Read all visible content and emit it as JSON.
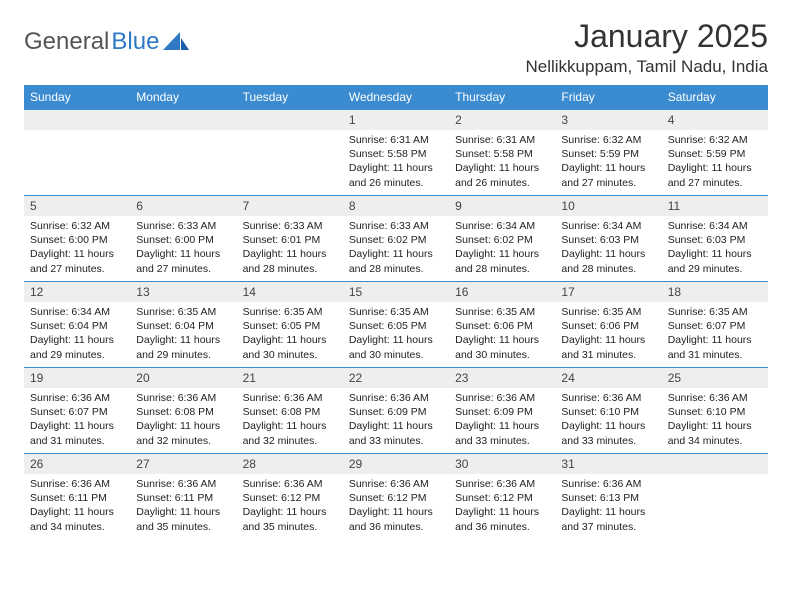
{
  "logo": {
    "text1": "General",
    "text2": "Blue"
  },
  "title": "January 2025",
  "location": "Nellikkuppam, Tamil Nadu, India",
  "colors": {
    "header_bg": "#3b8bd0",
    "header_text": "#ffffff",
    "daynum_bg": "#eceeef",
    "row_border": "#3b8bd0",
    "logo_blue": "#2f78c4"
  },
  "typography": {
    "title_fontsize": 32,
    "location_fontsize": 17,
    "th_fontsize": 12,
    "daynum_fontsize": 12,
    "body_fontsize": 10.5
  },
  "weekdays": [
    "Sunday",
    "Monday",
    "Tuesday",
    "Wednesday",
    "Thursday",
    "Friday",
    "Saturday"
  ],
  "weeks": [
    [
      null,
      null,
      null,
      {
        "n": "1",
        "sr": "Sunrise: 6:31 AM",
        "ss": "Sunset: 5:58 PM",
        "d1": "Daylight: 11 hours",
        "d2": "and 26 minutes."
      },
      {
        "n": "2",
        "sr": "Sunrise: 6:31 AM",
        "ss": "Sunset: 5:58 PM",
        "d1": "Daylight: 11 hours",
        "d2": "and 26 minutes."
      },
      {
        "n": "3",
        "sr": "Sunrise: 6:32 AM",
        "ss": "Sunset: 5:59 PM",
        "d1": "Daylight: 11 hours",
        "d2": "and 27 minutes."
      },
      {
        "n": "4",
        "sr": "Sunrise: 6:32 AM",
        "ss": "Sunset: 5:59 PM",
        "d1": "Daylight: 11 hours",
        "d2": "and 27 minutes."
      }
    ],
    [
      {
        "n": "5",
        "sr": "Sunrise: 6:32 AM",
        "ss": "Sunset: 6:00 PM",
        "d1": "Daylight: 11 hours",
        "d2": "and 27 minutes."
      },
      {
        "n": "6",
        "sr": "Sunrise: 6:33 AM",
        "ss": "Sunset: 6:00 PM",
        "d1": "Daylight: 11 hours",
        "d2": "and 27 minutes."
      },
      {
        "n": "7",
        "sr": "Sunrise: 6:33 AM",
        "ss": "Sunset: 6:01 PM",
        "d1": "Daylight: 11 hours",
        "d2": "and 28 minutes."
      },
      {
        "n": "8",
        "sr": "Sunrise: 6:33 AM",
        "ss": "Sunset: 6:02 PM",
        "d1": "Daylight: 11 hours",
        "d2": "and 28 minutes."
      },
      {
        "n": "9",
        "sr": "Sunrise: 6:34 AM",
        "ss": "Sunset: 6:02 PM",
        "d1": "Daylight: 11 hours",
        "d2": "and 28 minutes."
      },
      {
        "n": "10",
        "sr": "Sunrise: 6:34 AM",
        "ss": "Sunset: 6:03 PM",
        "d1": "Daylight: 11 hours",
        "d2": "and 28 minutes."
      },
      {
        "n": "11",
        "sr": "Sunrise: 6:34 AM",
        "ss": "Sunset: 6:03 PM",
        "d1": "Daylight: 11 hours",
        "d2": "and 29 minutes."
      }
    ],
    [
      {
        "n": "12",
        "sr": "Sunrise: 6:34 AM",
        "ss": "Sunset: 6:04 PM",
        "d1": "Daylight: 11 hours",
        "d2": "and 29 minutes."
      },
      {
        "n": "13",
        "sr": "Sunrise: 6:35 AM",
        "ss": "Sunset: 6:04 PM",
        "d1": "Daylight: 11 hours",
        "d2": "and 29 minutes."
      },
      {
        "n": "14",
        "sr": "Sunrise: 6:35 AM",
        "ss": "Sunset: 6:05 PM",
        "d1": "Daylight: 11 hours",
        "d2": "and 30 minutes."
      },
      {
        "n": "15",
        "sr": "Sunrise: 6:35 AM",
        "ss": "Sunset: 6:05 PM",
        "d1": "Daylight: 11 hours",
        "d2": "and 30 minutes."
      },
      {
        "n": "16",
        "sr": "Sunrise: 6:35 AM",
        "ss": "Sunset: 6:06 PM",
        "d1": "Daylight: 11 hours",
        "d2": "and 30 minutes."
      },
      {
        "n": "17",
        "sr": "Sunrise: 6:35 AM",
        "ss": "Sunset: 6:06 PM",
        "d1": "Daylight: 11 hours",
        "d2": "and 31 minutes."
      },
      {
        "n": "18",
        "sr": "Sunrise: 6:35 AM",
        "ss": "Sunset: 6:07 PM",
        "d1": "Daylight: 11 hours",
        "d2": "and 31 minutes."
      }
    ],
    [
      {
        "n": "19",
        "sr": "Sunrise: 6:36 AM",
        "ss": "Sunset: 6:07 PM",
        "d1": "Daylight: 11 hours",
        "d2": "and 31 minutes."
      },
      {
        "n": "20",
        "sr": "Sunrise: 6:36 AM",
        "ss": "Sunset: 6:08 PM",
        "d1": "Daylight: 11 hours",
        "d2": "and 32 minutes."
      },
      {
        "n": "21",
        "sr": "Sunrise: 6:36 AM",
        "ss": "Sunset: 6:08 PM",
        "d1": "Daylight: 11 hours",
        "d2": "and 32 minutes."
      },
      {
        "n": "22",
        "sr": "Sunrise: 6:36 AM",
        "ss": "Sunset: 6:09 PM",
        "d1": "Daylight: 11 hours",
        "d2": "and 33 minutes."
      },
      {
        "n": "23",
        "sr": "Sunrise: 6:36 AM",
        "ss": "Sunset: 6:09 PM",
        "d1": "Daylight: 11 hours",
        "d2": "and 33 minutes."
      },
      {
        "n": "24",
        "sr": "Sunrise: 6:36 AM",
        "ss": "Sunset: 6:10 PM",
        "d1": "Daylight: 11 hours",
        "d2": "and 33 minutes."
      },
      {
        "n": "25",
        "sr": "Sunrise: 6:36 AM",
        "ss": "Sunset: 6:10 PM",
        "d1": "Daylight: 11 hours",
        "d2": "and 34 minutes."
      }
    ],
    [
      {
        "n": "26",
        "sr": "Sunrise: 6:36 AM",
        "ss": "Sunset: 6:11 PM",
        "d1": "Daylight: 11 hours",
        "d2": "and 34 minutes."
      },
      {
        "n": "27",
        "sr": "Sunrise: 6:36 AM",
        "ss": "Sunset: 6:11 PM",
        "d1": "Daylight: 11 hours",
        "d2": "and 35 minutes."
      },
      {
        "n": "28",
        "sr": "Sunrise: 6:36 AM",
        "ss": "Sunset: 6:12 PM",
        "d1": "Daylight: 11 hours",
        "d2": "and 35 minutes."
      },
      {
        "n": "29",
        "sr": "Sunrise: 6:36 AM",
        "ss": "Sunset: 6:12 PM",
        "d1": "Daylight: 11 hours",
        "d2": "and 36 minutes."
      },
      {
        "n": "30",
        "sr": "Sunrise: 6:36 AM",
        "ss": "Sunset: 6:12 PM",
        "d1": "Daylight: 11 hours",
        "d2": "and 36 minutes."
      },
      {
        "n": "31",
        "sr": "Sunrise: 6:36 AM",
        "ss": "Sunset: 6:13 PM",
        "d1": "Daylight: 11 hours",
        "d2": "and 37 minutes."
      },
      null
    ]
  ]
}
